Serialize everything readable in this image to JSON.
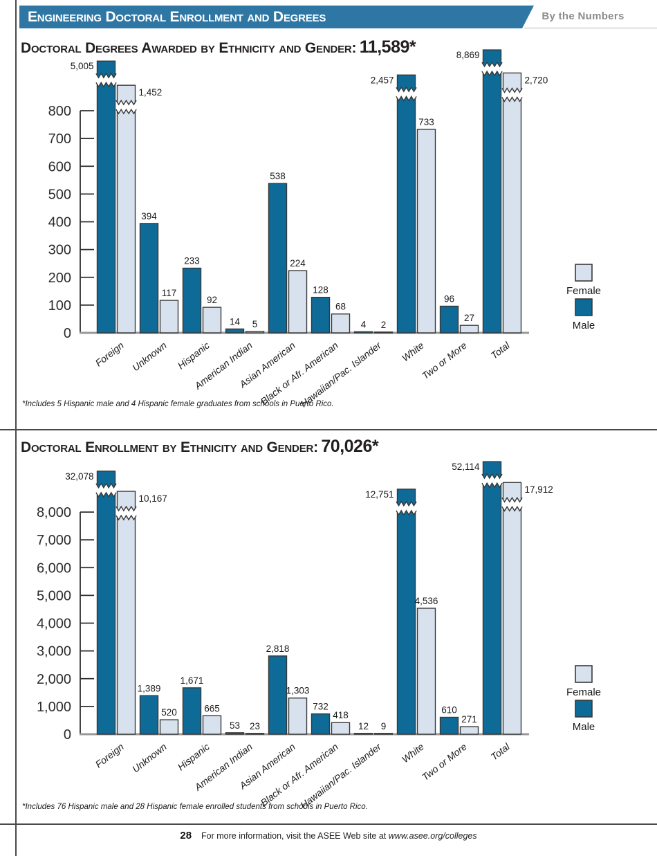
{
  "header": {
    "banner_title": "Engineering Doctoral Enrollment and Degrees",
    "tagline": "By the Numbers"
  },
  "colors": {
    "banner_blue": "#2e77a5",
    "male_bar": "#0e6a97",
    "female_bar": "#d8e2ee",
    "bar_outline": "#383838",
    "axis_dark": "#2e2e2e",
    "x_axis_gray": "#999999",
    "label_text": "#1a1a1a"
  },
  "chart_data": [
    {
      "type": "bar",
      "title_prefix": "Doctoral Degrees Awarded by Ethnicity and Gender:",
      "total_value": "11,589*",
      "categories": [
        "Foreign",
        "Unknown",
        "Hispanic",
        "American Indian",
        "Asian American",
        "Black or Afr. American",
        "Hawaiian/Pac. Islander",
        "White",
        "Two or More",
        "Total"
      ],
      "series": [
        {
          "name": "Male",
          "color": "#0e6a97",
          "values": [
            5005,
            394,
            233,
            14,
            538,
            128,
            4,
            2457,
            96,
            8869
          ]
        },
        {
          "name": "Female",
          "color": "#d8e2ee",
          "values": [
            1452,
            117,
            92,
            5,
            224,
            68,
            2,
            733,
            27,
            2720
          ]
        }
      ],
      "ylim": [
        0,
        800
      ],
      "ytick_step": 100,
      "axis_break_for_values_above_ymax": true,
      "grid": false,
      "legend_position": "right",
      "legend_order": [
        "Female",
        "Male"
      ],
      "footnote": "*Includes 5 Hispanic male and 4 Hispanic female graduates from schools in Puerto Rico."
    },
    {
      "type": "bar",
      "title_prefix": "Doctoral Enrollment by Ethnicity and Gender:",
      "total_value": "70,026*",
      "categories": [
        "Foreign",
        "Unknown",
        "Hispanic",
        "American Indian",
        "Asian American",
        "Black or Afr. American",
        "Hawaiian/Pac. Islander",
        "White",
        "Two or More",
        "Total"
      ],
      "series": [
        {
          "name": "Male",
          "color": "#0e6a97",
          "values": [
            32078,
            1389,
            1671,
            53,
            2818,
            732,
            12,
            12751,
            610,
            52114
          ]
        },
        {
          "name": "Female",
          "color": "#d8e2ee",
          "values": [
            10167,
            520,
            665,
            23,
            1303,
            418,
            9,
            4536,
            271,
            17912
          ]
        }
      ],
      "ylim": [
        0,
        8000
      ],
      "ytick_step": 1000,
      "axis_break_for_values_above_ymax": true,
      "grid": false,
      "legend_position": "right",
      "legend_order": [
        "Female",
        "Male"
      ],
      "footnote": "*Includes 76 Hispanic male and 28 Hispanic female enrolled students from schools in Puerto Rico."
    }
  ],
  "footer": {
    "page_number": "28",
    "text": "For more information, visit the ASEE Web site at",
    "link": "www.asee.org/colleges"
  }
}
